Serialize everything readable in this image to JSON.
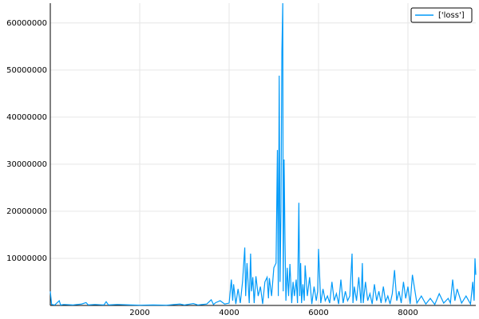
{
  "chart_data": {
    "type": "line",
    "x": [
      0,
      30,
      100,
      200,
      230,
      300,
      500,
      700,
      800,
      850,
      1000,
      1200,
      1250,
      1300,
      1500,
      1800,
      2000,
      2300,
      2600,
      2900,
      3000,
      3200,
      3300,
      3500,
      3600,
      3650,
      3700,
      3800,
      3900,
      4000,
      4050,
      4080,
      4100,
      4150,
      4200,
      4250,
      4300,
      4350,
      4370,
      4400,
      4450,
      4480,
      4500,
      4530,
      4560,
      4600,
      4650,
      4700,
      4750,
      4800,
      4850,
      4880,
      4900,
      4950,
      5000,
      5050,
      5080,
      5100,
      5120,
      5140,
      5160,
      5180,
      5200,
      5210,
      5230,
      5250,
      5270,
      5300,
      5330,
      5360,
      5400,
      5430,
      5460,
      5500,
      5530,
      5560,
      5580,
      5600,
      5620,
      5650,
      5680,
      5700,
      5750,
      5800,
      5850,
      5900,
      5950,
      5980,
      6000,
      6050,
      6100,
      6150,
      6200,
      6250,
      6300,
      6350,
      6400,
      6450,
      6500,
      6550,
      6600,
      6650,
      6700,
      6750,
      6770,
      6800,
      6850,
      6900,
      6950,
      6980,
      7000,
      7050,
      7100,
      7150,
      7200,
      7250,
      7300,
      7350,
      7400,
      7450,
      7500,
      7550,
      7600,
      7650,
      7700,
      7750,
      7800,
      7850,
      7900,
      7950,
      8000,
      8050,
      8100,
      8200,
      8300,
      8400,
      8500,
      8600,
      8700,
      8800,
      8900,
      8950,
      9000,
      9050,
      9100,
      9200,
      9300,
      9400,
      9450,
      9480,
      9500,
      9518
    ],
    "series": [
      {
        "name": "['loss']",
        "color": "#009af9",
        "values": [
          3000000,
          200000,
          100000,
          1000000,
          100000,
          200000,
          100000,
          300000,
          600000,
          100000,
          200000,
          100000,
          800000,
          100000,
          200000,
          100000,
          50000,
          100000,
          50000,
          300000,
          100000,
          400000,
          100000,
          300000,
          1200000,
          200000,
          600000,
          1000000,
          300000,
          500000,
          5500000,
          1000000,
          4500000,
          300000,
          3500000,
          500000,
          5000000,
          12300000,
          2000000,
          9000000,
          500000,
          11000000,
          3000000,
          6000000,
          500000,
          6200000,
          2000000,
          4000000,
          300000,
          5000000,
          6000000,
          1500000,
          5800000,
          2000000,
          8000000,
          9000000,
          33000000,
          2000000,
          48800000,
          5000000,
          20000000,
          53800000,
          64200000,
          3000000,
          31000000,
          13500000,
          1000000,
          8000000,
          2000000,
          8800000,
          500000,
          5000000,
          2000000,
          5500000,
          500000,
          21800000,
          2000000,
          9000000,
          500000,
          4500000,
          1000000,
          8500000,
          2000000,
          6000000,
          300000,
          4000000,
          1000000,
          3000000,
          12000000,
          500000,
          3500000,
          1000000,
          2000000,
          500000,
          5000000,
          1000000,
          2500000,
          300000,
          5500000,
          500000,
          3000000,
          1000000,
          2000000,
          11000000,
          500000,
          4000000,
          1000000,
          6000000,
          500000,
          9000000,
          500000,
          5000000,
          1000000,
          2500000,
          300000,
          4500000,
          1000000,
          3000000,
          500000,
          4000000,
          800000,
          2000000,
          300000,
          2500000,
          7500000,
          1000000,
          3000000,
          500000,
          5000000,
          1500000,
          4000000,
          300000,
          6500000,
          500000,
          2000000,
          300000,
          1500000,
          200000,
          2500000,
          500000,
          1500000,
          500000,
          5500000,
          1000000,
          3500000,
          500000,
          2000000,
          300000,
          5000000,
          1000000,
          10000000,
          6500000
        ]
      }
    ],
    "xlim": [
      0,
      9518
    ],
    "ylim": [
      0,
      64200000
    ],
    "xticks": [
      2000,
      4000,
      6000,
      8000
    ],
    "yticks": [
      10000000,
      20000000,
      30000000,
      40000000,
      50000000,
      60000000
    ],
    "grid": true,
    "legend": "top-right"
  }
}
